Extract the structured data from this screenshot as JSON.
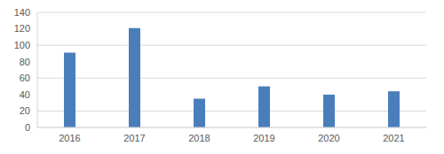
{
  "chart_data": {
    "type": "bar",
    "categories": [
      "2016",
      "2017",
      "2018",
      "2019",
      "2020",
      "2021"
    ],
    "values": [
      91,
      121,
      35,
      50,
      40,
      44
    ],
    "color": "#4a7ebb",
    "ylim": [
      0,
      140
    ],
    "yticks": [
      0,
      20,
      40,
      60,
      80,
      100,
      120,
      140
    ],
    "grid": true
  }
}
